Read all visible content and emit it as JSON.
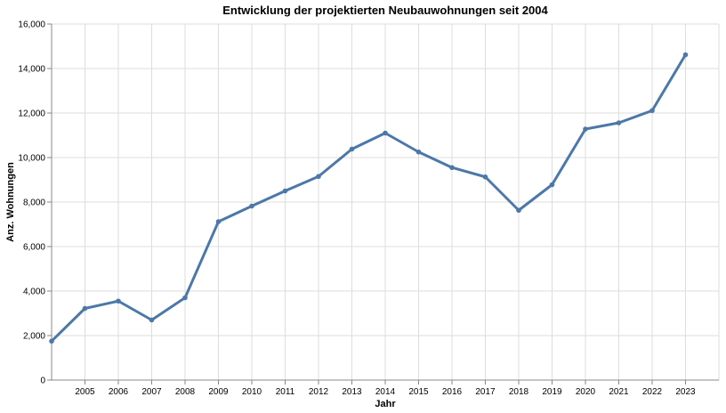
{
  "chart_data": {
    "type": "line",
    "title": "Entwicklung der projektierten Neubauwohnungen seit 2004",
    "xlabel": "Jahr",
    "ylabel": "Anz. Wohnungen",
    "ylim": [
      0,
      16000
    ],
    "y_ticks": [
      "0",
      "2,000",
      "4,000",
      "6,000",
      "8,000",
      "10,000",
      "12,000",
      "14,000",
      "16,000"
    ],
    "x_ticks": [
      "2005",
      "2006",
      "2007",
      "2008",
      "2009",
      "2010",
      "2011",
      "2012",
      "2013",
      "2014",
      "2015",
      "2016",
      "2017",
      "2018",
      "2019",
      "2020",
      "2021",
      "2022",
      "2023"
    ],
    "grid": true,
    "line_color": "#4c78a8",
    "series": [
      {
        "x": [
          2004,
          2005,
          2006,
          2007,
          2008,
          2009,
          2010,
          2011,
          2012,
          2013,
          2014,
          2015,
          2016,
          2017,
          2018,
          2019,
          2020,
          2021,
          2022,
          2023
        ],
        "values": [
          1750,
          3220,
          3550,
          2700,
          3700,
          7120,
          7820,
          8500,
          9150,
          10380,
          11100,
          10250,
          9550,
          9130,
          7630,
          8780,
          11280,
          11560,
          12110,
          14620
        ]
      }
    ]
  }
}
